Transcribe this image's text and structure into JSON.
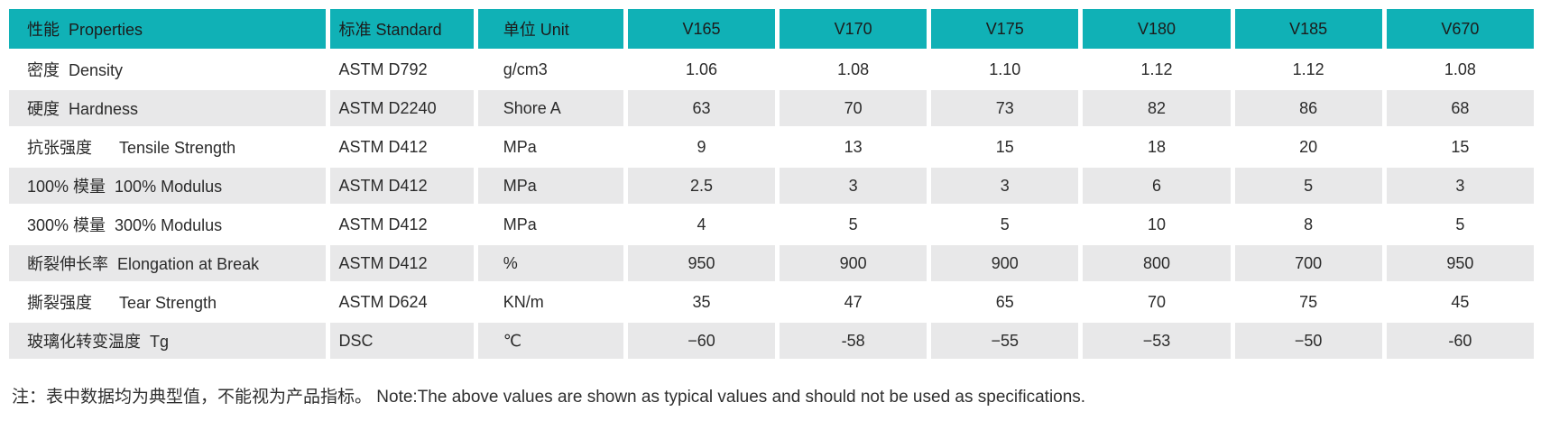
{
  "colors": {
    "header_bg": "#10b1b6",
    "header_text": "#1c1c1c",
    "stripe_bg": "#e8e8e9",
    "body_text": "#2b2b2b"
  },
  "table": {
    "columns": [
      {
        "key": "property",
        "label": "性能  Properties"
      },
      {
        "key": "standard",
        "label": "标准 Standard"
      },
      {
        "key": "unit",
        "label": "单位 Unit"
      },
      {
        "key": "v165",
        "label": "V165"
      },
      {
        "key": "v170",
        "label": "V170"
      },
      {
        "key": "v175",
        "label": "V175"
      },
      {
        "key": "v180",
        "label": "V180"
      },
      {
        "key": "v185",
        "label": "V185"
      },
      {
        "key": "v670",
        "label": "V670"
      }
    ],
    "rows": [
      {
        "property": "密度  Density",
        "standard": "ASTM D792",
        "unit": "g/cm3",
        "values": [
          "1.06",
          "1.08",
          "1.10",
          "1.12",
          "1.12",
          "1.08"
        ]
      },
      {
        "property": "硬度  Hardness",
        "standard": "ASTM D2240",
        "unit": "Shore A",
        "values": [
          "63",
          "70",
          "73",
          "82",
          "86",
          "68"
        ]
      },
      {
        "property": "抗张强度      Tensile Strength",
        "standard": "ASTM D412",
        "unit": "MPa",
        "values": [
          "9",
          "13",
          "15",
          "18",
          "20",
          "15"
        ]
      },
      {
        "property": "100% 模量  100% Modulus",
        "standard": "ASTM D412",
        "unit": "MPa",
        "values": [
          "2.5",
          "3",
          "3",
          "6",
          "5",
          "3"
        ]
      },
      {
        "property": "300% 模量  300% Modulus",
        "standard": "ASTM D412",
        "unit": "MPa",
        "values": [
          "4",
          "5",
          "5",
          "10",
          "8",
          "5"
        ]
      },
      {
        "property": "断裂伸长率  Elongation at Break",
        "standard": "ASTM D412",
        "unit": "%",
        "values": [
          "950",
          "900",
          "900",
          "800",
          "700",
          "950"
        ]
      },
      {
        "property": "撕裂强度      Tear Strength",
        "standard": "ASTM D624",
        "unit": "KN/m",
        "values": [
          "35",
          "47",
          "65",
          "70",
          "75",
          "45"
        ]
      },
      {
        "property": "玻璃化转变温度  Tg",
        "standard": "DSC",
        "unit": "℃",
        "values": [
          "−60",
          "-58",
          "−55",
          "−53",
          "−50",
          "-60"
        ]
      }
    ]
  },
  "note": "注：表中数据均为典型值，不能视为产品指标。 Note:The above values are shown as typical values and should not be used as specifications."
}
